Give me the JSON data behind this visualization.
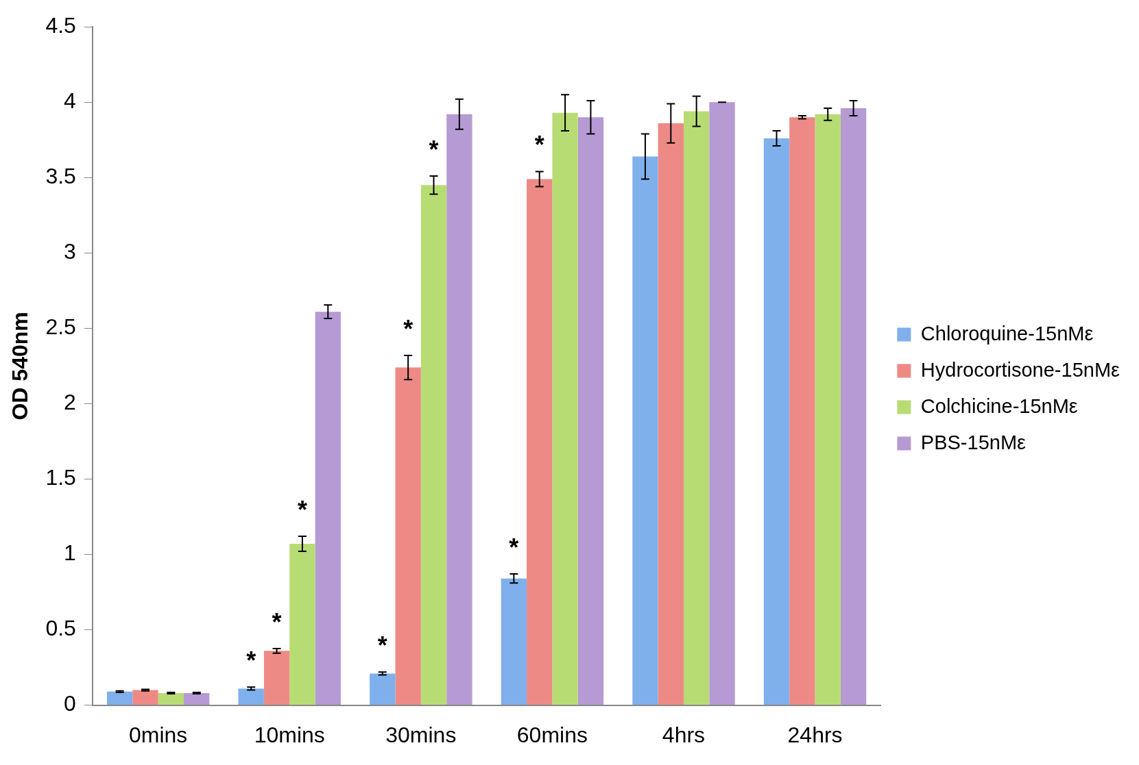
{
  "chart_data": {
    "type": "bar",
    "ylabel": "OD 540nm",
    "categories": [
      "0mins",
      "10mins",
      "30mins",
      "60mins",
      "4hrs",
      "24hrs"
    ],
    "series": [
      {
        "name": "Chloroquine-15nMε",
        "color": "#7fb0ec",
        "values": [
          0.09,
          0.11,
          0.21,
          0.84,
          3.64,
          3.76
        ],
        "errors": [
          0.005,
          0.01,
          0.01,
          0.03,
          0.15,
          0.05
        ]
      },
      {
        "name": "Hydrocortisone-15nMε",
        "color": "#ee8a85",
        "values": [
          0.1,
          0.36,
          2.24,
          3.49,
          3.86,
          3.9
        ],
        "errors": [
          0.005,
          0.015,
          0.08,
          0.05,
          0.13,
          0.01
        ]
      },
      {
        "name": "Colchicine-15nMε",
        "color": "#b8dc74",
        "values": [
          0.08,
          1.07,
          3.45,
          3.93,
          3.94,
          3.92
        ],
        "errors": [
          0.005,
          0.05,
          0.06,
          0.12,
          0.1,
          0.04
        ]
      },
      {
        "name": "PBS-15nMε",
        "color": "#b59ad4",
        "values": [
          0.08,
          2.61,
          3.92,
          3.9,
          4.0,
          3.96
        ],
        "errors": [
          0.005,
          0.045,
          0.1,
          0.11,
          0,
          0.05
        ]
      }
    ],
    "annotations": [
      {
        "text": "*",
        "x": "10mins",
        "y": 0.11
      },
      {
        "text": "*",
        "x": "10mins",
        "y": 0.36
      },
      {
        "text": "*",
        "x": "10mins",
        "y": 1.07
      },
      {
        "text": "*",
        "x": "30mins",
        "y": 0.21
      },
      {
        "text": "*",
        "x": "30mins",
        "y": 2.24
      },
      {
        "text": "*",
        "x": "30mins",
        "y": 3.45
      },
      {
        "text": "*",
        "x": "60mins",
        "y": 0.84
      },
      {
        "text": "*",
        "x": "60mins",
        "y": 3.49
      }
    ],
    "ylim": [
      0,
      4.5
    ],
    "yticks": [
      0,
      0.5,
      1,
      1.5,
      2,
      2.5,
      3,
      3.5,
      4,
      4.5
    ],
    "grid": false,
    "legend": "right"
  }
}
